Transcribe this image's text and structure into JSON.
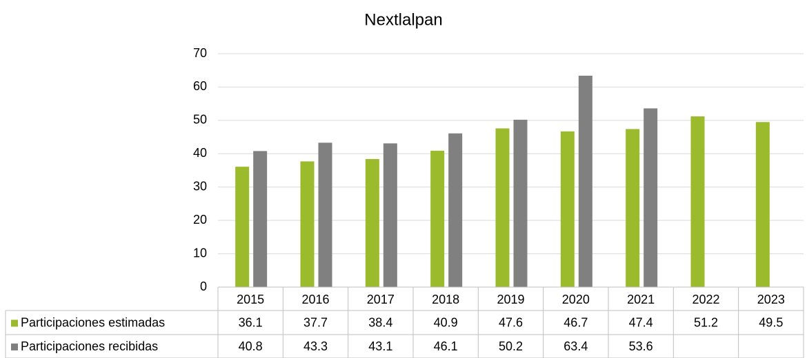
{
  "chart_data": {
    "type": "bar",
    "title": "Nextlalpan",
    "categories": [
      "2015",
      "2016",
      "2017",
      "2018",
      "2019",
      "2020",
      "2021",
      "2022",
      "2023"
    ],
    "series": [
      {
        "name": "Participaciones estimadas",
        "color": "#9bbb2c",
        "values": [
          36.1,
          37.7,
          38.4,
          40.9,
          47.6,
          46.7,
          47.4,
          51.2,
          49.5
        ]
      },
      {
        "name": "Participaciones recibidas",
        "color": "#808080",
        "values": [
          40.8,
          43.3,
          43.1,
          46.1,
          50.2,
          63.4,
          53.6,
          null,
          null
        ]
      }
    ],
    "ylim": [
      0,
      70
    ],
    "yticks": [
      0,
      10,
      20,
      30,
      40,
      50,
      60,
      70
    ],
    "grid": true
  }
}
